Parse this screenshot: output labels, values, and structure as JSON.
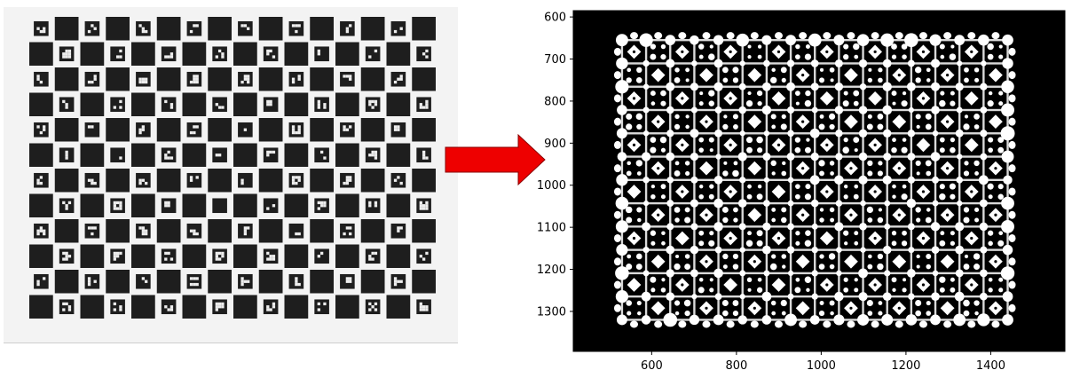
{
  "left_image": {
    "type": "charuco-board-photo",
    "rows": 12,
    "cols": 16,
    "colors": {
      "paper": "#f3f3f3",
      "square": "#1e1e1e",
      "marker_bg": "#ededed"
    }
  },
  "arrow": {
    "icon": "right-arrow-icon",
    "color": "#ee0000"
  },
  "chart_data": {
    "type": "image",
    "xlim": [
      415,
      1575
    ],
    "ylim": [
      1395,
      585
    ],
    "x_ticks": [
      "600",
      "800",
      "1000",
      "1200",
      "1400"
    ],
    "y_ticks": [
      "600",
      "700",
      "800",
      "900",
      "1000",
      "1100",
      "1200",
      "1300"
    ],
    "x_tick_values": [
      600,
      800,
      1000,
      1200,
      1400
    ],
    "y_tick_values": [
      600,
      700,
      800,
      900,
      1000,
      1100,
      1200,
      1300
    ],
    "blob_region": {
      "x": [
        530,
        1440
      ],
      "y": [
        655,
        1320
      ]
    },
    "background_color": "#000000",
    "foreground_color": "#ffffff",
    "xlabel": "",
    "ylabel": "",
    "title": ""
  }
}
